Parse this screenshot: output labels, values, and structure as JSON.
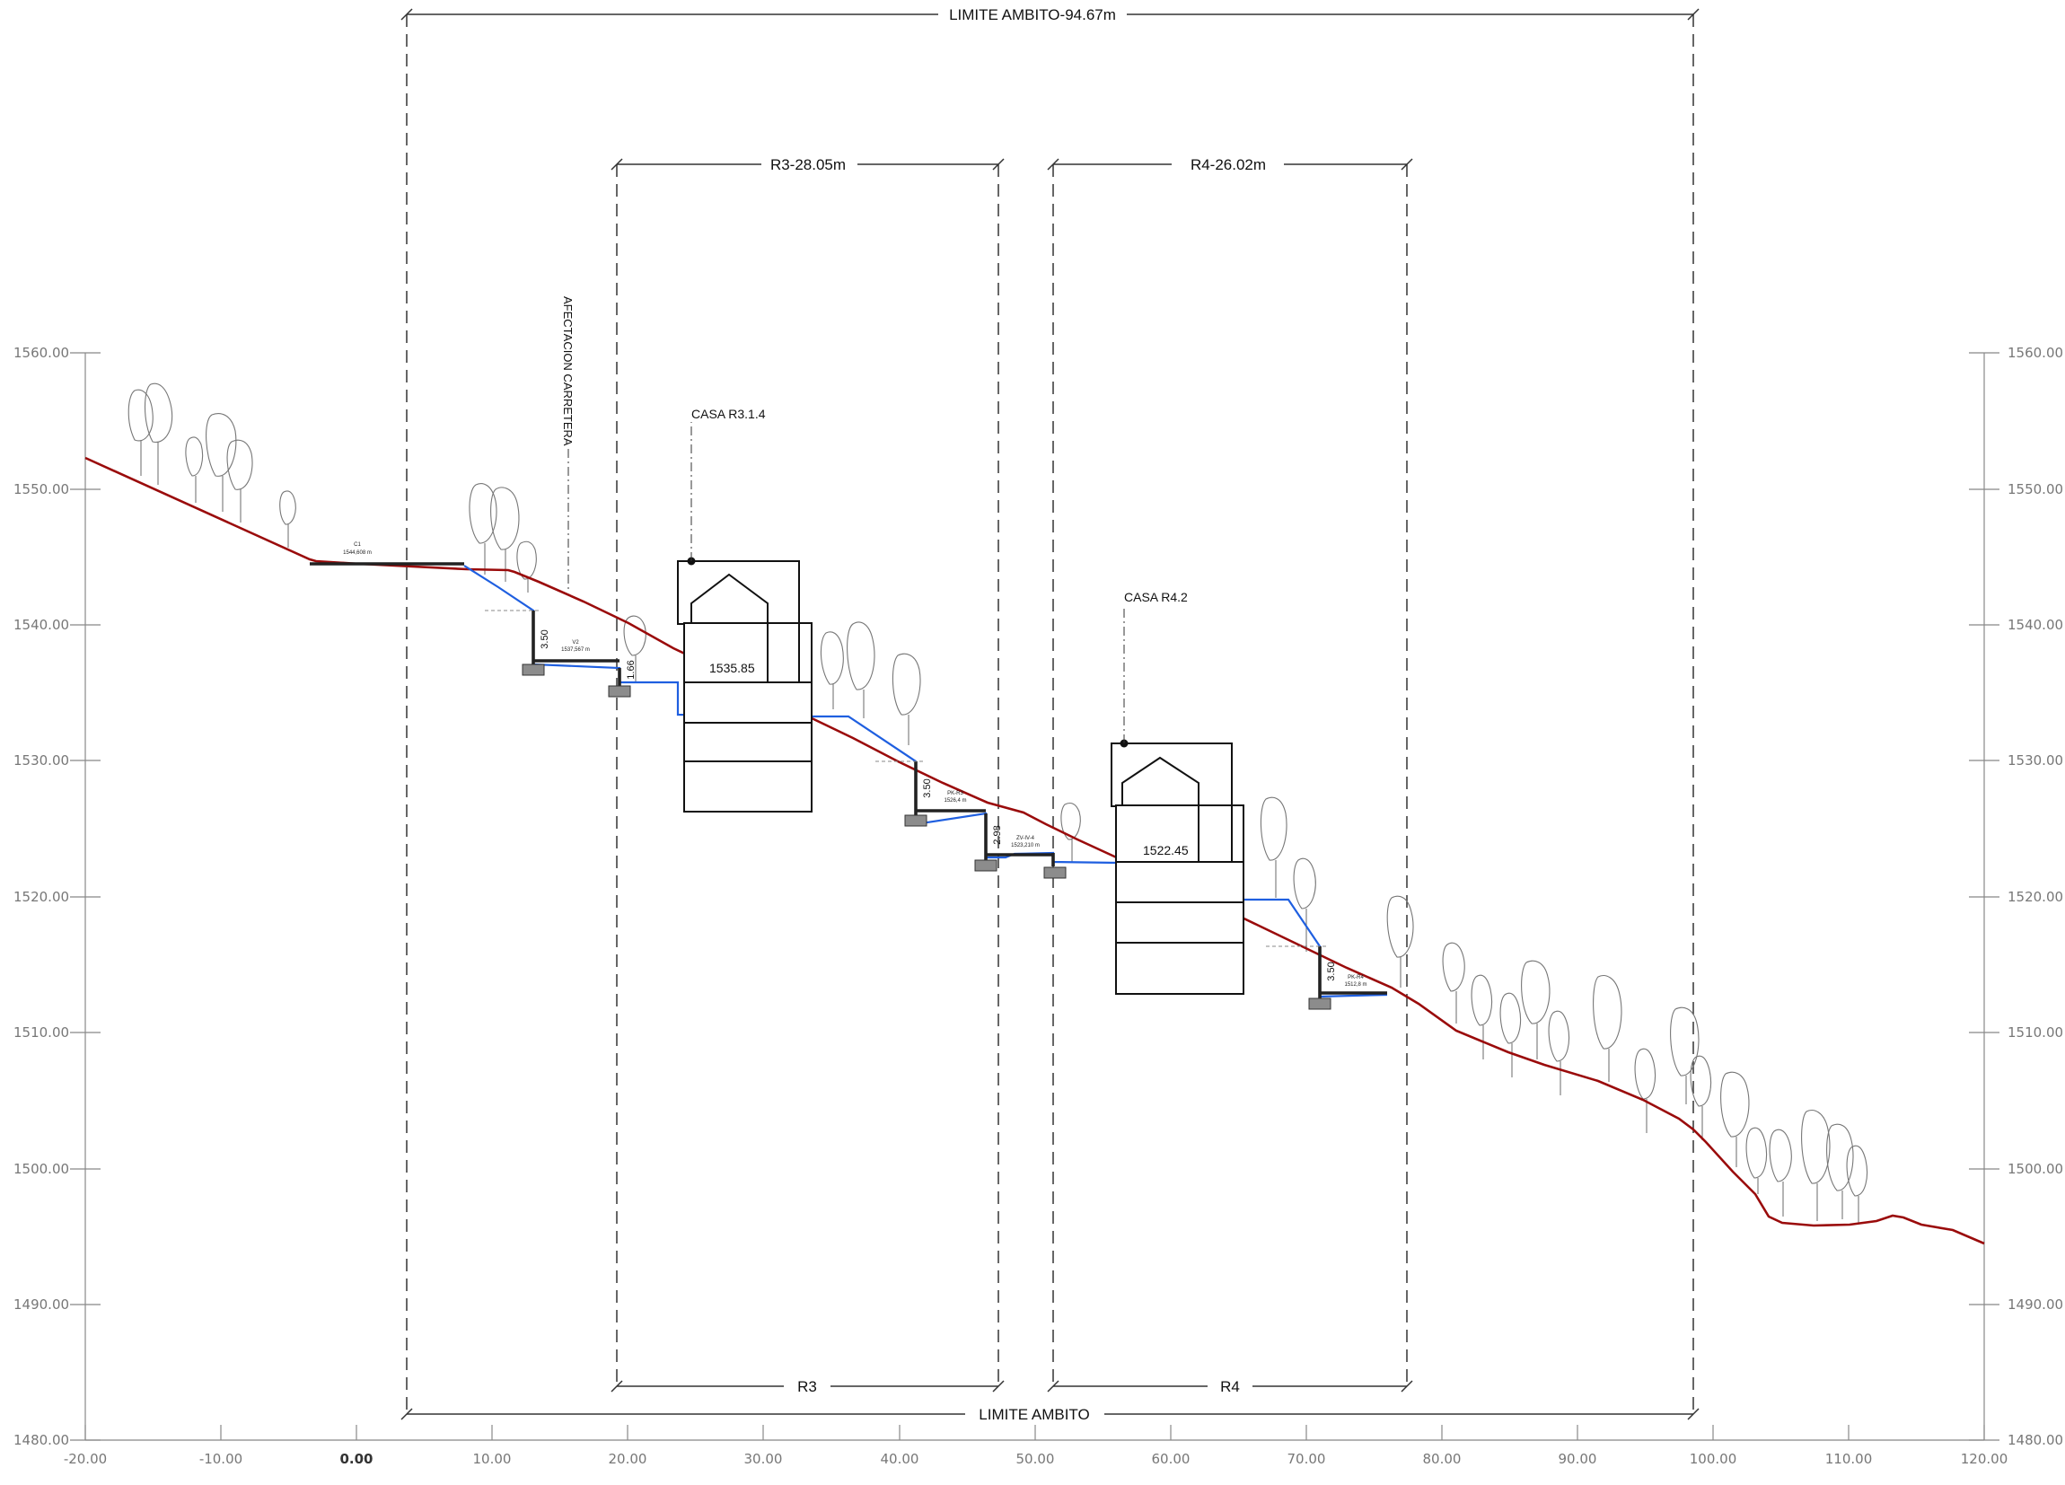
{
  "limits": {
    "ambito_top": "LIMITE AMBITO-94.67m",
    "ambito_bottom": "LIMITE AMBITO",
    "r3_top": "R3-28.05m",
    "r3_bottom": "R3",
    "r4_top": "R4-26.02m",
    "r4_bottom": "R4"
  },
  "annotations": {
    "afectacion": "AFECTACION CARRETERA",
    "casa_r3": "CASA R3.1.4",
    "casa_r4": "CASA R4.2",
    "elev_r3": "1535.85",
    "elev_r4": "1522.45"
  },
  "dimensions": {
    "d1": "3.50",
    "d2": "1.66",
    "d3": "3.50",
    "d4": "2.98",
    "d5": "3.50"
  },
  "notes": {
    "c1_name": "C1",
    "c1_val": "1544,608 m",
    "v2_name": "V2",
    "v2_val": "1537,567 m",
    "pk_name": "PK-R3",
    "pk_val": "1526,4 m",
    "zv_name": "ZV-IV-4",
    "zv_val": "1523,210 m",
    "pk4_name": "PK-R4",
    "pk4_val": "1512,8 m"
  },
  "x_axis": {
    "ticks": [
      "-20.00",
      "-10.00",
      "0.00",
      "10.00",
      "20.00",
      "30.00",
      "40.00",
      "50.00",
      "60.00",
      "70.00",
      "80.00",
      "90.00",
      "100.00",
      "110.00",
      "120.00"
    ]
  },
  "y_axis": {
    "ticks": [
      "1480.00",
      "1490.00",
      "1500.00",
      "1510.00",
      "1520.00",
      "1530.00",
      "1540.00",
      "1550.00",
      "1560.00"
    ]
  },
  "colors": {
    "terrain": "#9a0b0b",
    "proposed": "#1f5fe0",
    "lines": "#111111",
    "axis": "#888888",
    "footing": "#8c8c8c"
  }
}
